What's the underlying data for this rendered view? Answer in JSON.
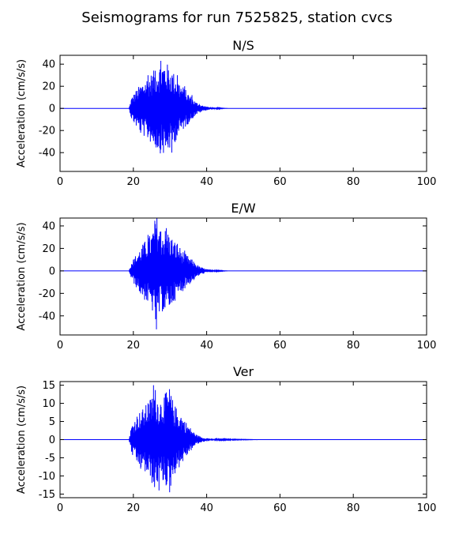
{
  "chart_data": {
    "title": "Seismograms for run 7525825, station cvcs",
    "type": "line",
    "color": "#0000ff",
    "panels": [
      {
        "title": "N/S",
        "xlabel": "",
        "ylabel": "Acceleration (cm/s/s)",
        "xlim": [
          0,
          100
        ],
        "ylim": [
          -57,
          48
        ],
        "xticks": [
          0,
          20,
          40,
          60,
          80,
          100
        ],
        "yticks": [
          -40,
          -20,
          0,
          20,
          40
        ],
        "series": [
          {
            "x": [
              0,
              18.8,
              19.5,
              22,
              24,
              26,
              27.5,
              29,
              30.5,
              32,
              34,
              36,
              38,
              40,
              45,
              100
            ],
            "y": [
              0,
              0,
              8,
              -22,
              30,
              34,
              43,
              -30,
              -40,
              30,
              20,
              12,
              4,
              1,
              0,
              0
            ],
            "envelope": [
              [
                18.8,
                0
              ],
              [
                19.5,
                10
              ],
              [
                21,
                18
              ],
              [
                23,
                26
              ],
              [
                25,
                32
              ],
              [
                27,
                40
              ],
              [
                28.5,
                43
              ],
              [
                30,
                38
              ],
              [
                31.5,
                30
              ],
              [
                33,
                22
              ],
              [
                35,
                14
              ],
              [
                37,
                6
              ],
              [
                39,
                2.5
              ],
              [
                41,
                1
              ],
              [
                44,
                0.3
              ],
              [
                46,
                0
              ]
            ]
          }
        ]
      },
      {
        "title": "E/W",
        "xlabel": "",
        "ylabel": "Acceleration (cm/s/s)",
        "xlim": [
          0,
          100
        ],
        "ylim": [
          -57,
          47
        ],
        "xticks": [
          0,
          20,
          40,
          60,
          80,
          100
        ],
        "yticks": [
          -40,
          -20,
          0,
          20,
          40
        ],
        "series": [
          {
            "x": [
              0,
              18.8,
              19.5,
              22,
              24,
              26.3,
              27.5,
              29,
              30.5,
              32,
              34,
              36,
              38,
              40,
              45,
              100
            ],
            "y": [
              0,
              0,
              6,
              -20,
              32,
              -52,
              35,
              38,
              -28,
              24,
              18,
              10,
              3,
              1,
              0,
              0
            ],
            "envelope": [
              [
                18.8,
                0
              ],
              [
                19.5,
                8
              ],
              [
                21,
                16
              ],
              [
                23,
                26
              ],
              [
                25,
                34
              ],
              [
                26.3,
                52
              ],
              [
                27.5,
                36
              ],
              [
                29,
                38
              ],
              [
                30.5,
                30
              ],
              [
                32,
                24
              ],
              [
                34,
                16
              ],
              [
                36,
                10
              ],
              [
                38,
                4
              ],
              [
                40,
                1.5
              ],
              [
                43,
                0.5
              ],
              [
                46,
                0
              ]
            ]
          }
        ]
      },
      {
        "title": "Ver",
        "xlabel": "",
        "ylabel": "Acceleration (cm/s/s)",
        "xlim": [
          0,
          100
        ],
        "ylim": [
          -16,
          16
        ],
        "xticks": [
          0,
          20,
          40,
          60,
          80,
          100
        ],
        "yticks": [
          -15,
          -10,
          -5,
          0,
          5,
          10,
          15
        ],
        "series": [
          {
            "x": [
              0,
              18.8,
              19.5,
              22,
              24,
              25.5,
              27,
              29,
              29.9,
              31,
              33,
              35,
              37,
              39,
              40,
              42,
              50,
              100
            ],
            "y": [
              0,
              0,
              3,
              -8,
              10,
              15,
              -14,
              13,
              -14.5,
              8,
              6,
              3,
              1,
              0.3,
              0.4,
              0,
              0,
              0
            ],
            "envelope": [
              [
                18.8,
                0
              ],
              [
                19.5,
                4
              ],
              [
                21,
                7
              ],
              [
                23,
                9
              ],
              [
                25,
                12
              ],
              [
                25.8,
                15
              ],
              [
                27,
                11
              ],
              [
                29,
                13
              ],
              [
                29.9,
                14.5
              ],
              [
                31,
                10
              ],
              [
                33,
                7
              ],
              [
                35,
                4
              ],
              [
                37,
                1.5
              ],
              [
                39,
                0.6
              ],
              [
                42,
                0.2
              ],
              [
                48,
                0.1
              ],
              [
                55,
                0
              ]
            ]
          }
        ]
      }
    ]
  }
}
